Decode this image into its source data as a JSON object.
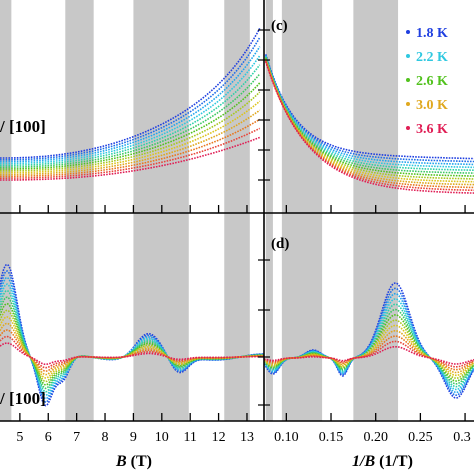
{
  "chart_data": [
    {
      "panel": "",
      "type": "line",
      "xlabel_prefix": "B",
      "xlabel_unit": " (T)",
      "x_ticks": [
        5,
        6,
        7,
        8,
        9,
        10,
        11,
        12,
        13
      ],
      "xlim": [
        4.3,
        13.6
      ],
      "side_label": "/ [100]",
      "shaded_bands": [
        [
          4.3,
          4.7
        ],
        [
          6.6,
          7.6
        ],
        [
          9.0,
          10.95
        ],
        [
          12.2,
          13.1
        ]
      ],
      "series_temperatures": [
        "1.8",
        "1.95",
        "2.1",
        "2.2",
        "2.35",
        "2.5",
        "2.6",
        "2.75",
        "2.9",
        "3.0",
        "3.2",
        "3.4",
        "3.6"
      ],
      "trend": "monotonic rise, steepest for lowest temperature"
    },
    {
      "panel": "(c)",
      "type": "line",
      "xlabel_prefix": "1/B",
      "xlabel_unit": " (1/T)",
      "xlim": [
        0.075,
        0.31
      ],
      "shaded_bands": [
        [
          0.077,
          0.085
        ],
        [
          0.095,
          0.14
        ],
        [
          0.175,
          0.225
        ]
      ],
      "legend": [
        "1.8 K",
        "2.2 K",
        "2.6 K",
        "3.0 K",
        "3.6 K"
      ],
      "legend_colors": [
        "#1f3fe0",
        "#2fc8e0",
        "#52c21e",
        "#e0a81e",
        "#e01e55"
      ]
    },
    {
      "panel": "",
      "type": "line",
      "xlim": [
        4.3,
        13.6
      ],
      "side_label": "/ [100]",
      "shaded_bands": [
        [
          4.3,
          4.7
        ],
        [
          6.6,
          7.6
        ],
        [
          9.0,
          10.95
        ],
        [
          12.2,
          13.1
        ]
      ],
      "trend": "oscillatory residual, amplitude decreasing with temperature"
    },
    {
      "panel": "(d)",
      "type": "line",
      "x_ticks": [
        0.1,
        0.15,
        0.2,
        0.25,
        0.3
      ],
      "x_tick_labels": [
        "0.10",
        "0.15",
        "0.20",
        "0.25",
        "0.3"
      ],
      "xlim": [
        0.075,
        0.31
      ],
      "shaded_bands": [
        [
          0.077,
          0.085
        ],
        [
          0.095,
          0.14
        ],
        [
          0.175,
          0.225
        ]
      ],
      "trend": "oscillatory residual vs inverse field"
    }
  ],
  "legend_items": [
    {
      "label": "1.8 K",
      "color": "#1f3fe0"
    },
    {
      "label": "2.2 K",
      "color": "#2fc8e0"
    },
    {
      "label": "2.6 K",
      "color": "#52c21e"
    },
    {
      "label": "3.0 K",
      "color": "#e0a81e"
    },
    {
      "label": "3.6 K",
      "color": "#e01e55"
    }
  ],
  "labels": {
    "panel_c": "(c)",
    "panel_d": "(d)",
    "side_top": "/ [100]",
    "side_bottom": "/ [100]",
    "xlabel_left_italic": "B",
    "xlabel_left_unit": " (T)",
    "xlabel_right_italic": "1/B",
    "xlabel_right_unit": " (1/T)"
  },
  "tick_labels_left": [
    "5",
    "6",
    "7",
    "8",
    "9",
    "10",
    "11",
    "12",
    "13"
  ],
  "tick_labels_right": [
    "0.10",
    "0.15",
    "0.20",
    "0.25",
    "0.3"
  ],
  "band_color": "#c8c8c8",
  "series_colors": [
    "#1f3fe0",
    "#1f6ee8",
    "#22a6ee",
    "#2fc8e0",
    "#2fd0a8",
    "#3cc864",
    "#52c21e",
    "#a8c81e",
    "#dcc41e",
    "#e0a81e",
    "#e8781e",
    "#e8463a",
    "#e01e55"
  ]
}
